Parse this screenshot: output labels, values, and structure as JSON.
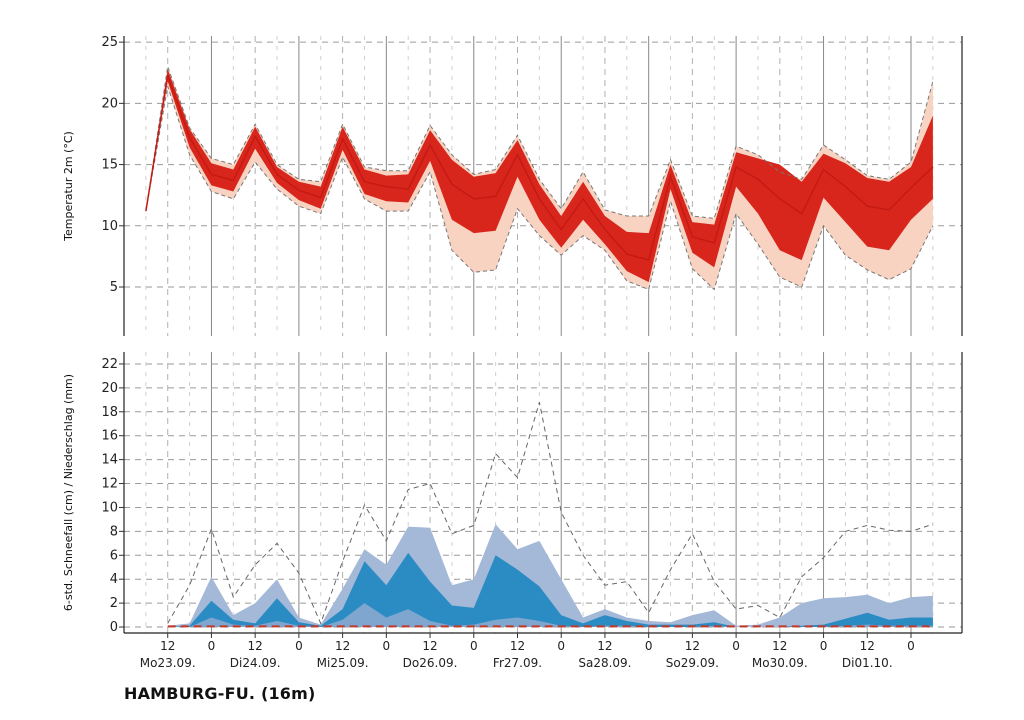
{
  "station": "HAMBURG-FU. (16m)",
  "colors": {
    "temp_outer": "#f9d3c2",
    "temp_mid": "#f38c6e",
    "temp_inner": "#d9261c",
    "temp_median": "#c51a14",
    "prec_outer": "#a4b8d8",
    "prec_inner": "#2b8cc4",
    "prec_median": "#c0392b"
  },
  "chart_data": [
    {
      "type": "area",
      "name": "temperature",
      "ylabel": "Temperatur 2m (°C)",
      "ylim": [
        1,
        25.5
      ],
      "yticks": [
        5,
        10,
        15,
        20,
        25
      ],
      "x_unit": "hours since Mo23.09. 00 UTC",
      "x": [
        6,
        12,
        18,
        24,
        30,
        36,
        42,
        48,
        54,
        60,
        66,
        72,
        78,
        84,
        90,
        96,
        102,
        108,
        114,
        120,
        126,
        132,
        138,
        144,
        150,
        156,
        162,
        168,
        174,
        180,
        186,
        192,
        198,
        204,
        210,
        216,
        222
      ],
      "series": [
        {
          "name": "max",
          "values": [
            11.2,
            23.0,
            18.0,
            15.5,
            15.0,
            18.3,
            15.0,
            13.8,
            13.6,
            18.3,
            14.8,
            14.5,
            14.5,
            18.2,
            15.8,
            14.2,
            14.6,
            17.4,
            13.8,
            11.4,
            14.4,
            11.3,
            10.8,
            10.8,
            15.4,
            10.8,
            10.6,
            16.5,
            15.8,
            14.4,
            13.8,
            16.6,
            15.4,
            14.1,
            13.8,
            15.2,
            21.8
          ]
        },
        {
          "name": "p75",
          "values": [
            11.2,
            22.6,
            17.6,
            14.8,
            14.2,
            17.8,
            14.6,
            13.4,
            12.8,
            17.8,
            14.3,
            13.8,
            13.8,
            17.4,
            15.0,
            13.8,
            14.0,
            16.7,
            13.0,
            10.4,
            13.0,
            10.4,
            8.5,
            8.3,
            14.6,
            9.8,
            9.6,
            15.5,
            14.9,
            14.6,
            13.2,
            15.3,
            14.8,
            13.7,
            13.4,
            14.2,
            16.5
          ]
        },
        {
          "name": "p25",
          "values": [
            11.2,
            22.0,
            16.8,
            13.6,
            13.2,
            16.8,
            13.8,
            12.4,
            11.7,
            16.5,
            13.0,
            12.6,
            12.3,
            15.8,
            11.8,
            10.6,
            10.8,
            14.8,
            11.4,
            9.0,
            11.5,
            9.0,
            7.0,
            6.2,
            13.5,
            8.5,
            7.6,
            14.0,
            12.8,
            9.8,
            8.8,
            13.8,
            11.6,
            9.6,
            9.2,
            12.0,
            13.0
          ]
        },
        {
          "name": "min",
          "values": [
            11.2,
            21.4,
            15.8,
            12.8,
            12.2,
            15.2,
            13.0,
            11.6,
            11.0,
            15.6,
            12.2,
            11.2,
            11.2,
            14.4,
            8.0,
            6.2,
            6.4,
            11.4,
            9.2,
            7.6,
            9.2,
            8.0,
            5.5,
            4.8,
            12.0,
            6.5,
            4.8,
            11.0,
            8.5,
            5.8,
            5.0,
            10.0,
            7.6,
            6.4,
            5.6,
            6.5,
            10.0
          ]
        },
        {
          "name": "q-lo",
          "values": [
            11.2,
            21.8,
            16.4,
            13.3,
            12.8,
            16.3,
            13.5,
            12.1,
            11.4,
            16.2,
            12.6,
            12.0,
            11.9,
            15.3,
            10.5,
            9.4,
            9.6,
            14.0,
            10.5,
            8.2,
            10.5,
            8.5,
            6.3,
            5.4,
            13.0,
            7.8,
            6.6,
            13.2,
            11.0,
            8.0,
            7.2,
            12.3,
            10.3,
            8.3,
            8.0,
            10.5,
            12.2
          ]
        },
        {
          "name": "q-hi",
          "values": [
            11.2,
            22.8,
            17.9,
            15.1,
            14.6,
            18.1,
            14.8,
            13.6,
            13.2,
            18.1,
            14.6,
            14.1,
            14.2,
            17.8,
            15.4,
            14.0,
            14.3,
            17.0,
            13.4,
            10.8,
            13.6,
            10.8,
            9.5,
            9.4,
            15.0,
            10.3,
            10.1,
            16.0,
            15.5,
            15.0,
            13.6,
            15.9,
            15.1,
            13.9,
            13.6,
            14.8,
            19.0
          ]
        },
        {
          "name": "median",
          "values": [
            11.2,
            22.3,
            17.2,
            14.2,
            13.7,
            17.3,
            14.2,
            12.9,
            12.3,
            17.1,
            13.6,
            13.2,
            13.0,
            16.6,
            13.4,
            12.2,
            12.4,
            15.8,
            12.2,
            9.7,
            12.2,
            9.7,
            7.7,
            7.2,
            14.0,
            9.1,
            8.6,
            14.8,
            13.8,
            12.2,
            11.0,
            14.6,
            13.2,
            11.6,
            11.3,
            13.1,
            14.8
          ]
        }
      ]
    },
    {
      "type": "area",
      "name": "precipitation",
      "ylabel": "6-std. Schneefall (cm) / Niederschlag (mm)",
      "ylim": [
        -0.5,
        23
      ],
      "yticks": [
        0,
        2,
        4,
        6,
        8,
        10,
        12,
        14,
        16,
        18,
        20,
        22
      ],
      "x_unit": "hours since Mo23.09. 00 UTC",
      "x": [
        12,
        18,
        24,
        30,
        36,
        42,
        48,
        54,
        60,
        66,
        72,
        78,
        84,
        90,
        96,
        102,
        108,
        114,
        120,
        126,
        132,
        138,
        144,
        150,
        156,
        162,
        168,
        174,
        180,
        186,
        192,
        198,
        204,
        210,
        216,
        222
      ],
      "series": [
        {
          "name": "max",
          "values": [
            0.3,
            3.5,
            8.2,
            2.5,
            5.2,
            7.0,
            4.5,
            0.3,
            5.5,
            10.2,
            7.2,
            11.5,
            12.0,
            7.8,
            8.5,
            14.5,
            12.5,
            18.8,
            9.6,
            6.0,
            3.5,
            3.8,
            1.2,
            4.8,
            7.8,
            3.8,
            1.5,
            1.8,
            0.8,
            4.2,
            5.8,
            8.0,
            8.5,
            8.1,
            8.0,
            8.6
          ]
        },
        {
          "name": "p90",
          "values": [
            0.1,
            0.3,
            4.2,
            1.0,
            2.0,
            4.0,
            0.8,
            0.2,
            3.2,
            6.5,
            5.2,
            8.4,
            8.3,
            3.5,
            4.0,
            8.6,
            6.5,
            7.2,
            4.0,
            0.8,
            1.5,
            0.8,
            0.5,
            0.4,
            1.0,
            1.4,
            0.1,
            0.2,
            0.8,
            2.0,
            2.4,
            2.5,
            2.7,
            2.0,
            2.5,
            2.6
          ]
        },
        {
          "name": "p75",
          "values": [
            0.0,
            0.1,
            2.2,
            0.6,
            0.3,
            2.4,
            0.4,
            0.1,
            1.5,
            5.5,
            3.5,
            6.2,
            3.8,
            1.8,
            1.6,
            6.0,
            4.8,
            3.4,
            1.0,
            0.3,
            1.0,
            0.5,
            0.2,
            0.2,
            0.2,
            0.4,
            0.0,
            0.0,
            0.0,
            0.1,
            0.2,
            0.7,
            1.2,
            0.6,
            0.8,
            0.8
          ]
        },
        {
          "name": "p25",
          "values": [
            0.0,
            0.0,
            0.8,
            0.2,
            0.1,
            0.5,
            0.1,
            0.0,
            0.6,
            2.0,
            0.8,
            1.5,
            0.5,
            0.1,
            0.2,
            0.6,
            0.8,
            0.5,
            0.1,
            0.0,
            0.1,
            0.1,
            0.0,
            0.0,
            0.0,
            0.1,
            0.0,
            0.0,
            0.0,
            0.0,
            0.0,
            0.1,
            0.2,
            0.1,
            0.1,
            0.1
          ]
        },
        {
          "name": "median",
          "values": [
            0.05,
            0.05,
            0.05,
            0.05,
            0.05,
            0.05,
            0.05,
            0.05,
            0.05,
            0.05,
            0.05,
            0.05,
            0.05,
            0.05,
            0.05,
            0.05,
            0.05,
            0.05,
            0.05,
            0.05,
            0.05,
            0.05,
            0.05,
            0.05,
            0.05,
            0.05,
            0.05,
            0.05,
            0.05,
            0.05,
            0.05,
            0.05,
            0.05,
            0.05,
            0.05,
            0.05
          ]
        }
      ]
    }
  ],
  "x_axis": {
    "hour_labels": [
      {
        "t": 12,
        "label": "12"
      },
      {
        "t": 24,
        "label": "0"
      },
      {
        "t": 36,
        "label": "12"
      },
      {
        "t": 48,
        "label": "0"
      },
      {
        "t": 60,
        "label": "12"
      },
      {
        "t": 72,
        "label": "0"
      },
      {
        "t": 84,
        "label": "12"
      },
      {
        "t": 96,
        "label": "0"
      },
      {
        "t": 108,
        "label": "12"
      },
      {
        "t": 120,
        "label": "0"
      },
      {
        "t": 132,
        "label": "12"
      },
      {
        "t": 144,
        "label": "0"
      },
      {
        "t": 156,
        "label": "12"
      },
      {
        "t": 168,
        "label": "0"
      },
      {
        "t": 180,
        "label": "12"
      },
      {
        "t": 192,
        "label": "0"
      },
      {
        "t": 204,
        "label": "12"
      },
      {
        "t": 216,
        "label": "0"
      }
    ],
    "day_labels": [
      {
        "t": 12,
        "label": "Mo23.09."
      },
      {
        "t": 36,
        "label": "Di24.09."
      },
      {
        "t": 60,
        "label": "Mi25.09."
      },
      {
        "t": 84,
        "label": "Do26.09."
      },
      {
        "t": 108,
        "label": "Fr27.09."
      },
      {
        "t": 132,
        "label": "Sa28.09."
      },
      {
        "t": 156,
        "label": "So29.09."
      },
      {
        "t": 180,
        "label": "Mo30.09."
      },
      {
        "t": 204,
        "label": "Di01.10."
      }
    ],
    "range": [
      0,
      230
    ]
  }
}
